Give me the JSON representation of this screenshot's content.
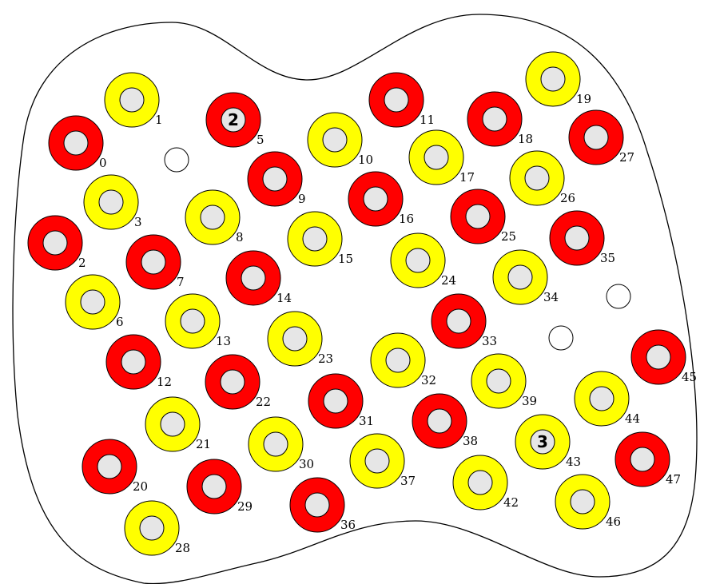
{
  "colors": {
    "red": "#ff0000",
    "yellow": "#ffff00",
    "hole": "#e6e6e6",
    "outline": "#000000",
    "background": "#ffffff"
  },
  "pieces": [
    {
      "id": "0",
      "color": "red",
      "marker": ""
    },
    {
      "id": "1",
      "color": "yellow",
      "marker": ""
    },
    {
      "id": "2",
      "color": "red",
      "marker": ""
    },
    {
      "id": "3",
      "color": "yellow",
      "marker": ""
    },
    {
      "id": "5",
      "color": "red",
      "marker": "2"
    },
    {
      "id": "6",
      "color": "yellow",
      "marker": ""
    },
    {
      "id": "7",
      "color": "red",
      "marker": ""
    },
    {
      "id": "8",
      "color": "yellow",
      "marker": ""
    },
    {
      "id": "9",
      "color": "red",
      "marker": ""
    },
    {
      "id": "10",
      "color": "yellow",
      "marker": ""
    },
    {
      "id": "11",
      "color": "red",
      "marker": ""
    },
    {
      "id": "12",
      "color": "red",
      "marker": ""
    },
    {
      "id": "13",
      "color": "yellow",
      "marker": ""
    },
    {
      "id": "14",
      "color": "red",
      "marker": ""
    },
    {
      "id": "15",
      "color": "yellow",
      "marker": ""
    },
    {
      "id": "16",
      "color": "red",
      "marker": ""
    },
    {
      "id": "17",
      "color": "yellow",
      "marker": ""
    },
    {
      "id": "18",
      "color": "red",
      "marker": ""
    },
    {
      "id": "19",
      "color": "yellow",
      "marker": ""
    },
    {
      "id": "20",
      "color": "red",
      "marker": ""
    },
    {
      "id": "21",
      "color": "yellow",
      "marker": ""
    },
    {
      "id": "22",
      "color": "red",
      "marker": ""
    },
    {
      "id": "23",
      "color": "yellow",
      "marker": ""
    },
    {
      "id": "24",
      "color": "yellow",
      "marker": ""
    },
    {
      "id": "25",
      "color": "red",
      "marker": ""
    },
    {
      "id": "26",
      "color": "yellow",
      "marker": ""
    },
    {
      "id": "27",
      "color": "red",
      "marker": ""
    },
    {
      "id": "28",
      "color": "yellow",
      "marker": ""
    },
    {
      "id": "29",
      "color": "red",
      "marker": ""
    },
    {
      "id": "30",
      "color": "yellow",
      "marker": ""
    },
    {
      "id": "31",
      "color": "red",
      "marker": ""
    },
    {
      "id": "32",
      "color": "yellow",
      "marker": ""
    },
    {
      "id": "33",
      "color": "red",
      "marker": ""
    },
    {
      "id": "34",
      "color": "yellow",
      "marker": ""
    },
    {
      "id": "35",
      "color": "red",
      "marker": ""
    },
    {
      "id": "36",
      "color": "red",
      "marker": ""
    },
    {
      "id": "37",
      "color": "yellow",
      "marker": ""
    },
    {
      "id": "38",
      "color": "red",
      "marker": ""
    },
    {
      "id": "39",
      "color": "yellow",
      "marker": ""
    },
    {
      "id": "42",
      "color": "yellow",
      "marker": ""
    },
    {
      "id": "43",
      "color": "yellow",
      "marker": "3"
    },
    {
      "id": "44",
      "color": "yellow",
      "marker": ""
    },
    {
      "id": "45",
      "color": "red",
      "marker": ""
    },
    {
      "id": "46",
      "color": "yellow",
      "marker": ""
    },
    {
      "id": "47",
      "color": "red",
      "marker": ""
    }
  ],
  "empty_spots": 3
}
